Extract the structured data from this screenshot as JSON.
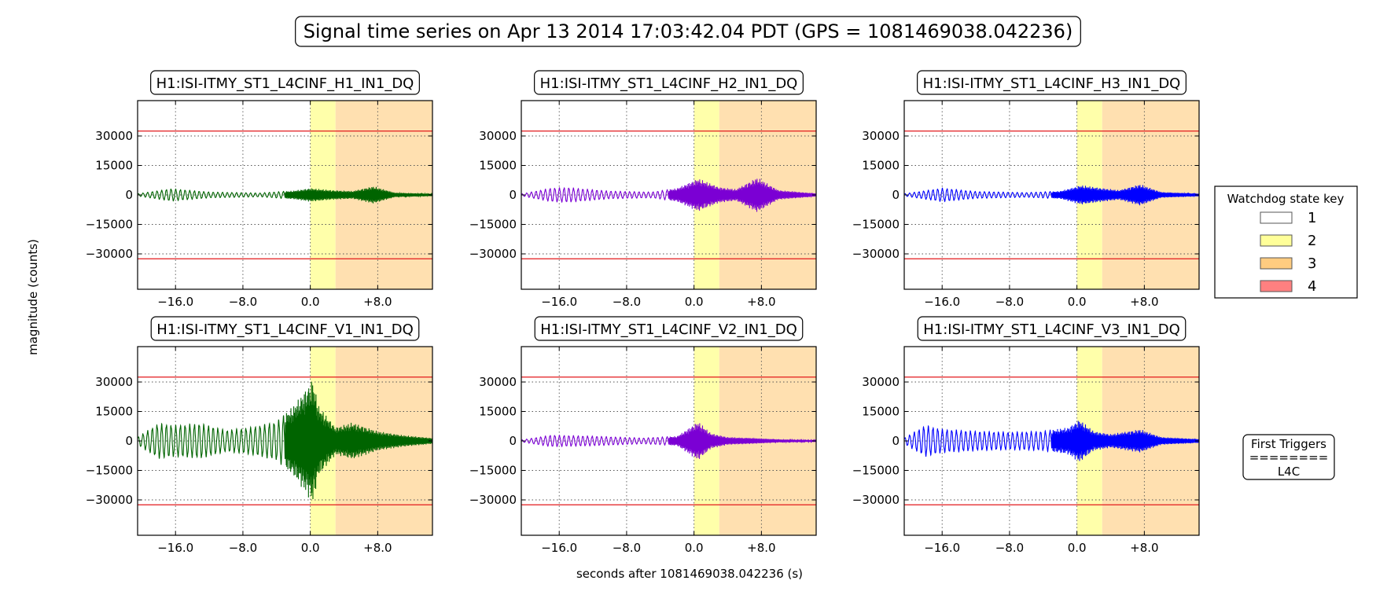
{
  "figure": {
    "title": "Signal time series on Apr 13 2014 17:03:42.04 PDT (GPS = 1081469038.042236)",
    "ylabel": "magnitude (counts)",
    "xlabel": "seconds after 1081469038.042236 (s)"
  },
  "legend": {
    "title": "Watchdog state key",
    "entries": [
      {
        "label": "1",
        "color": "#ffffff"
      },
      {
        "label": "2",
        "color": "#ffff99"
      },
      {
        "label": "3",
        "color": "#ffcc80"
      },
      {
        "label": "4",
        "color": "#ff8080"
      }
    ]
  },
  "triggers": {
    "heading": "First Triggers",
    "separator": "========",
    "value": "L4C"
  },
  "colors": {
    "threshold": "#e31a1c",
    "state2": "#ffffaa",
    "state3": "#ffe0b0",
    "green": "#006400",
    "purple": "#7b00d4",
    "blue": "#0000ff"
  },
  "chart_data": [
    {
      "type": "line",
      "title": "H1:ISI-ITMY_ST1_L4CINF_H1_IN1_DQ",
      "color": "green",
      "xlim": [
        -20.5,
        14.5
      ],
      "ylim": [
        -48000,
        48000
      ],
      "xticks": [
        -16,
        -8,
        0,
        8
      ],
      "xtick_labels": [
        "−16.0",
        "−8.0",
        "0.0",
        "+8.0"
      ],
      "yticks": [
        30000,
        15000,
        0,
        -15000,
        -30000
      ],
      "ytick_labels": [
        "30000",
        "15000",
        "0",
        "−15000",
        "−30000"
      ],
      "thresholds": [
        32500,
        -32500
      ],
      "state_bands": [
        {
          "state": 2,
          "x": [
            0,
            3
          ]
        },
        {
          "state": 3,
          "x": [
            3,
            14.5
          ]
        }
      ],
      "envelope": {
        "x": [
          -20.5,
          -16.5,
          -12,
          -6,
          -2,
          0,
          2.5,
          5,
          7.5,
          10,
          14.5
        ],
        "y": [
          600,
          3200,
          1500,
          1000,
          2200,
          3500,
          2500,
          2000,
          4500,
          1200,
          600
        ]
      }
    },
    {
      "type": "line",
      "title": "H1:ISI-ITMY_ST1_L4CINF_H2_IN1_DQ",
      "color": "purple",
      "xlim": [
        -20.5,
        14.5
      ],
      "ylim": [
        -48000,
        48000
      ],
      "xticks": [
        -16,
        -8,
        0,
        8
      ],
      "xtick_labels": [
        "−16.0",
        "−8.0",
        "0.0",
        "+8.0"
      ],
      "yticks": [
        30000,
        15000,
        0,
        -15000,
        -30000
      ],
      "ytick_labels": [
        "30000",
        "15000",
        "0",
        "−15000",
        "−30000"
      ],
      "thresholds": [
        32500,
        -32500
      ],
      "state_bands": [
        {
          "state": 2,
          "x": [
            0,
            3
          ]
        },
        {
          "state": 3,
          "x": [
            3,
            14.5
          ]
        }
      ],
      "envelope": {
        "x": [
          -20.5,
          -17,
          -15,
          -10,
          -5,
          -2,
          0.5,
          3,
          5,
          7.5,
          10,
          14.5
        ],
        "y": [
          500,
          3500,
          3800,
          2000,
          1500,
          3500,
          8500,
          4000,
          3000,
          9000,
          2500,
          800
        ]
      }
    },
    {
      "type": "line",
      "title": "H1:ISI-ITMY_ST1_L4CINF_H3_IN1_DQ",
      "color": "blue",
      "xlim": [
        -20.5,
        14.5
      ],
      "ylim": [
        -48000,
        48000
      ],
      "xticks": [
        -16,
        -8,
        0,
        8
      ],
      "xtick_labels": [
        "−16.0",
        "−8.0",
        "0.0",
        "+8.0"
      ],
      "yticks": [
        30000,
        15000,
        0,
        -15000,
        -30000
      ],
      "ytick_labels": [
        "30000",
        "15000",
        "0",
        "−15000",
        "−30000"
      ],
      "thresholds": [
        32500,
        -32500
      ],
      "state_bands": [
        {
          "state": 2,
          "x": [
            0,
            3
          ]
        },
        {
          "state": 3,
          "x": [
            3,
            14.5
          ]
        }
      ],
      "envelope": {
        "x": [
          -20.5,
          -16,
          -12,
          -6,
          -2,
          0.5,
          3,
          5,
          7.5,
          10,
          14.5
        ],
        "y": [
          600,
          3500,
          1800,
          1200,
          2000,
          5000,
          3500,
          2500,
          5500,
          1500,
          700
        ]
      }
    },
    {
      "type": "line",
      "title": "H1:ISI-ITMY_ST1_L4CINF_V1_IN1_DQ",
      "color": "green",
      "xlim": [
        -20.5,
        14.5
      ],
      "ylim": [
        -48000,
        48000
      ],
      "xticks": [
        -16,
        -8,
        0,
        8
      ],
      "xtick_labels": [
        "−16.0",
        "−8.0",
        "0.0",
        "+8.0"
      ],
      "yticks": [
        30000,
        15000,
        0,
        -15000,
        -30000
      ],
      "ytick_labels": [
        "30000",
        "15000",
        "0",
        "−15000",
        "−30000"
      ],
      "thresholds": [
        32500,
        -32500
      ],
      "state_bands": [
        {
          "state": 2,
          "x": [
            0,
            3
          ]
        },
        {
          "state": 3,
          "x": [
            3,
            14.5
          ]
        }
      ],
      "envelope": {
        "x": [
          -20.5,
          -18,
          -16,
          -13,
          -10,
          -7,
          -4,
          -2,
          -0.5,
          0.3,
          1,
          3,
          5,
          8,
          11,
          14.5
        ],
        "y": [
          2000,
          9000,
          8000,
          9000,
          5500,
          7000,
          10000,
          18000,
          27000,
          32000,
          18000,
          7000,
          9500,
          5000,
          3000,
          1500
        ]
      }
    },
    {
      "type": "line",
      "title": "H1:ISI-ITMY_ST1_L4CINF_V2_IN1_DQ",
      "color": "purple",
      "xlim": [
        -20.5,
        14.5
      ],
      "ylim": [
        -48000,
        48000
      ],
      "xticks": [
        -16,
        -8,
        0,
        8
      ],
      "xtick_labels": [
        "−16.0",
        "−8.0",
        "0.0",
        "+8.0"
      ],
      "yticks": [
        30000,
        15000,
        0,
        -15000,
        -30000
      ],
      "ytick_labels": [
        "30000",
        "15000",
        "0",
        "−15000",
        "−30000"
      ],
      "thresholds": [
        32500,
        -32500
      ],
      "state_bands": [
        {
          "state": 2,
          "x": [
            0,
            3
          ]
        },
        {
          "state": 3,
          "x": [
            3,
            14.5
          ]
        }
      ],
      "envelope": {
        "x": [
          -20.5,
          -17,
          -12,
          -6,
          -2,
          0.5,
          2,
          4,
          7,
          10,
          14.5
        ],
        "y": [
          500,
          3000,
          2500,
          1500,
          2500,
          10000,
          4000,
          2000,
          1500,
          800,
          400
        ]
      }
    },
    {
      "type": "line",
      "title": "H1:ISI-ITMY_ST1_L4CINF_V3_IN1_DQ",
      "color": "blue",
      "xlim": [
        -20.5,
        14.5
      ],
      "ylim": [
        -48000,
        48000
      ],
      "xticks": [
        -16,
        -8,
        0,
        8
      ],
      "xtick_labels": [
        "−16.0",
        "−8.0",
        "0.0",
        "+8.0"
      ],
      "yticks": [
        30000,
        15000,
        0,
        -15000,
        -30000
      ],
      "ytick_labels": [
        "30000",
        "15000",
        "0",
        "−15000",
        "−30000"
      ],
      "thresholds": [
        32500,
        -32500
      ],
      "state_bands": [
        {
          "state": 2,
          "x": [
            0,
            3
          ]
        },
        {
          "state": 3,
          "x": [
            3,
            14.5
          ]
        }
      ],
      "envelope": {
        "x": [
          -20.5,
          -18,
          -16,
          -12,
          -8,
          -4,
          -1,
          0.3,
          2,
          4,
          7.5,
          10,
          14.5
        ],
        "y": [
          1500,
          8000,
          6000,
          5000,
          4500,
          5000,
          7000,
          11000,
          5000,
          3500,
          6000,
          2000,
          1000
        ]
      }
    }
  ]
}
